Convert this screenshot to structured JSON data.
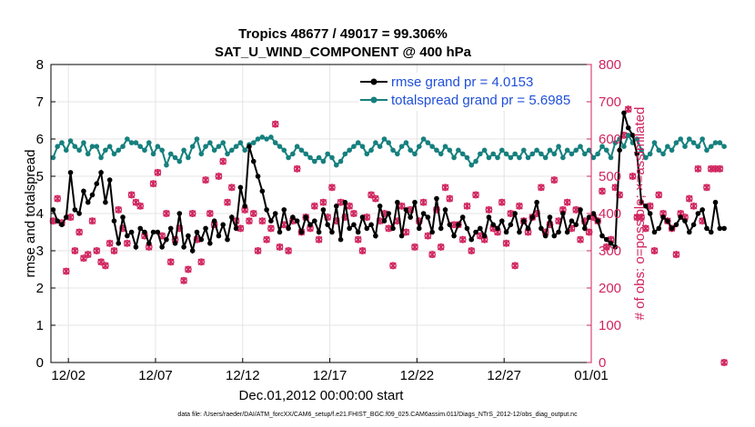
{
  "chart_data": {
    "type": "line",
    "title": "Tropics 48677 / 49017 = 99.306%",
    "subtitle": "SAT_U_WIND_COMPONENT @ 400 hPa",
    "xlabel": "Dec.01,2012 00:00:00 start",
    "ylabel": "rmse and totalspread",
    "y2label": "# of obs: o=possible; ×=assimilated",
    "xlim": [
      0,
      31
    ],
    "ylim": [
      0,
      8
    ],
    "y2lim": [
      0,
      800
    ],
    "x_ticks": [
      {
        "x": 1,
        "label": "12/02"
      },
      {
        "x": 6,
        "label": "12/07"
      },
      {
        "x": 11,
        "label": "12/12"
      },
      {
        "x": 16,
        "label": "12/17"
      },
      {
        "x": 21,
        "label": "12/22"
      },
      {
        "x": 26,
        "label": "12/27"
      },
      {
        "x": 31,
        "label": "01/01"
      }
    ],
    "y_ticks": [
      "0",
      "1",
      "2",
      "3",
      "4",
      "5",
      "6",
      "7",
      "8"
    ],
    "y2_ticks": [
      "0",
      "100",
      "200",
      "300",
      "400",
      "500",
      "600",
      "700",
      "800"
    ],
    "grid": true,
    "legend_position": "top-right",
    "footer": "data file: /Users/raeder/DAI/ATM_forcXX/CAM6_setup/f.e21.FHIST_BGC.f09_025.CAM6assim.011/Diags_NTrS_2012-12/obs_diag_output.nc",
    "x_step": 0.25,
    "series": [
      {
        "name": "rmse grand pr = 4.0153",
        "color": "#000000",
        "axis": "left",
        "values": [
          4.1,
          3.8,
          3.7,
          3.9,
          5.1,
          4.1,
          4.0,
          4.6,
          4.3,
          4.5,
          4.8,
          5.1,
          4.3,
          4.9,
          3.8,
          3.2,
          3.9,
          3.4,
          3.5,
          3.1,
          3.6,
          3.5,
          3.2,
          3.5,
          3.5,
          3.1,
          3.3,
          3.6,
          3.2,
          4.0,
          3.1,
          3.4,
          3.0,
          3.5,
          3.3,
          3.6,
          3.2,
          3.8,
          3.4,
          3.7,
          3.3,
          3.9,
          3.6,
          4.7,
          4.2,
          5.8,
          5.4,
          5.0,
          4.6,
          4.1,
          3.8,
          4.0,
          3.5,
          4.1,
          3.6,
          3.9,
          3.8,
          3.5,
          3.9,
          3.7,
          3.8,
          3.5,
          4.1,
          3.7,
          3.5,
          4.2,
          3.3,
          4.3,
          3.6,
          3.7,
          3.5,
          3.9,
          3.6,
          3.7,
          3.4,
          4.2,
          3.8,
          4.0,
          3.6,
          4.3,
          3.4,
          4.1,
          3.9,
          4.3,
          3.6,
          4.0,
          3.9,
          3.5,
          4.4,
          3.6,
          4.1,
          3.7,
          3.4,
          3.7,
          3.9,
          3.6,
          3.3,
          3.5,
          3.6,
          3.4,
          3.9,
          3.7,
          3.6,
          3.8,
          3.5,
          3.7,
          4.0,
          3.5,
          3.8,
          3.6,
          3.9,
          4.3,
          3.6,
          3.4,
          3.9,
          3.4,
          3.5,
          4.0,
          3.5,
          3.8,
          3.7,
          4.1,
          3.6,
          3.9,
          4.0,
          3.8,
          3.4,
          3.3,
          3.2,
          3.1,
          5.7,
          6.7,
          6.3,
          6.1,
          5.6,
          4.3,
          4.2,
          4.0,
          3.5,
          3.6,
          3.9,
          3.8,
          3.6,
          3.7,
          3.9,
          3.8,
          3.5,
          3.7,
          4.0,
          4.1,
          3.6,
          3.5,
          4.3,
          3.6,
          3.6
        ]
      },
      {
        "name": "totalspread grand pr = 5.6985",
        "color": "#16807e",
        "axis": "left",
        "values": [
          5.5,
          5.8,
          5.9,
          5.7,
          5.95,
          5.8,
          5.7,
          5.9,
          5.6,
          5.8,
          5.8,
          5.5,
          5.7,
          5.8,
          5.6,
          5.7,
          5.8,
          6.0,
          5.9,
          5.9,
          5.8,
          5.7,
          5.9,
          5.6,
          5.8,
          5.7,
          5.3,
          5.6,
          5.5,
          5.4,
          5.7,
          5.5,
          5.8,
          6.0,
          5.6,
          5.8,
          5.9,
          5.7,
          5.8,
          5.9,
          5.6,
          5.7,
          5.8,
          5.9,
          5.7,
          5.85,
          5.9,
          6.0,
          6.05,
          6.0,
          6.05,
          5.9,
          5.8,
          5.7,
          5.5,
          5.6,
          5.8,
          5.7,
          5.6,
          5.5,
          5.4,
          5.5,
          5.4,
          5.6,
          5.5,
          5.3,
          5.4,
          5.6,
          5.7,
          5.8,
          5.9,
          5.8,
          5.6,
          5.7,
          5.9,
          5.8,
          6.0,
          5.9,
          5.7,
          5.6,
          5.8,
          5.9,
          5.7,
          5.6,
          5.8,
          6.0,
          5.9,
          5.8,
          5.7,
          5.6,
          5.8,
          5.7,
          5.5,
          5.7,
          5.6,
          5.5,
          5.3,
          5.4,
          5.6,
          5.7,
          5.5,
          5.6,
          5.5,
          5.7,
          5.6,
          5.5,
          5.6,
          5.5,
          5.7,
          5.5,
          5.6,
          5.7,
          5.6,
          5.5,
          5.7,
          5.6,
          5.8,
          5.5,
          5.7,
          5.6,
          5.7,
          5.8,
          5.6,
          5.7,
          5.5,
          5.6,
          5.8,
          5.7,
          5.5,
          5.9,
          6.0,
          5.8,
          6.1,
          5.9,
          6.0,
          5.7,
          5.5,
          5.6,
          5.9,
          5.7,
          5.6,
          5.8,
          5.7,
          5.9,
          6.0,
          5.8,
          6.0,
          5.9,
          5.8,
          6.0,
          5.7,
          5.8,
          5.9,
          5.9,
          5.8
        ]
      },
      {
        "name": "obs possible",
        "color": "#d0245e",
        "axis": "right",
        "marker": "o",
        "values": [
          380,
          440,
          375,
          245,
          390,
          300,
          350,
          280,
          290,
          380,
          300,
          270,
          260,
          320,
          300,
          410,
          360,
          320,
          450,
          430,
          420,
          340,
          310,
          480,
          510,
          340,
          400,
          270,
          330,
          360,
          220,
          250,
          400,
          330,
          270,
          490,
          400,
          370,
          500,
          540,
          430,
          470,
          380,
          360,
          410,
          380,
          400,
          300,
          380,
          330,
          360,
          640,
          310,
          370,
          300,
          380,
          520,
          350,
          390,
          360,
          420,
          330,
          430,
          390,
          470,
          380,
          430,
          390,
          420,
          400,
          330,
          300,
          390,
          450,
          440,
          380,
          400,
          360,
          260,
          380,
          420,
          350,
          410,
          310,
          380,
          430,
          340,
          290,
          410,
          310,
          470,
          440,
          370,
          370,
          330,
          420,
          300,
          450,
          340,
          330,
          410,
          360,
          350,
          430,
          320,
          400,
          260,
          420,
          380,
          350,
          390,
          400,
          470,
          350,
          370,
          490,
          380,
          410,
          430,
          360,
          410,
          330,
          380,
          350,
          390,
          380,
          460,
          310,
          330,
          470,
          450,
          610,
          680,
          500,
          390,
          390,
          360,
          420,
          300,
          450,
          400,
          380,
          360,
          290,
          400,
          390,
          440,
          420,
          520,
          380,
          470,
          520,
          520,
          520,
          0
        ]
      },
      {
        "name": "obs assimilated",
        "color": "#d0245e",
        "axis": "right",
        "marker": "x",
        "values": [
          380,
          440,
          375,
          245,
          390,
          300,
          350,
          280,
          290,
          380,
          300,
          270,
          260,
          320,
          300,
          410,
          360,
          320,
          450,
          430,
          420,
          340,
          310,
          480,
          510,
          340,
          400,
          270,
          330,
          360,
          220,
          250,
          400,
          330,
          270,
          490,
          400,
          370,
          500,
          540,
          430,
          470,
          380,
          360,
          410,
          380,
          400,
          300,
          380,
          330,
          360,
          640,
          310,
          370,
          300,
          380,
          520,
          350,
          390,
          360,
          420,
          330,
          430,
          390,
          470,
          380,
          430,
          390,
          420,
          400,
          330,
          300,
          390,
          450,
          440,
          380,
          400,
          360,
          260,
          380,
          420,
          350,
          410,
          310,
          380,
          430,
          340,
          290,
          410,
          310,
          470,
          440,
          370,
          370,
          330,
          420,
          300,
          450,
          340,
          330,
          410,
          360,
          350,
          430,
          320,
          400,
          260,
          420,
          380,
          350,
          390,
          400,
          470,
          350,
          370,
          490,
          380,
          410,
          430,
          360,
          410,
          330,
          380,
          350,
          390,
          380,
          460,
          310,
          330,
          470,
          450,
          610,
          680,
          500,
          390,
          390,
          360,
          420,
          300,
          450,
          400,
          380,
          360,
          290,
          400,
          390,
          440,
          420,
          520,
          380,
          470,
          520,
          520,
          520,
          0
        ]
      }
    ],
    "colors": {
      "left_axis": "#000000",
      "right_axis": "#d0245e",
      "legend_text": "#1f4fd8",
      "grid": "#e4e4e4"
    }
  }
}
